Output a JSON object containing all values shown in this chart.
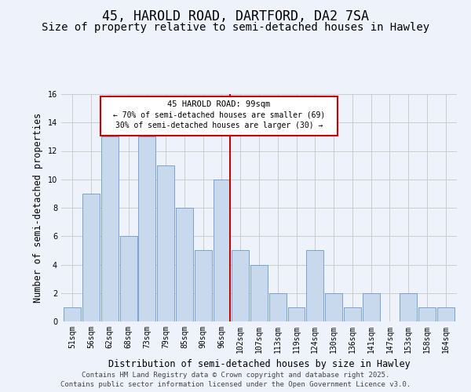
{
  "title": "45, HAROLD ROAD, DARTFORD, DA2 7SA",
  "subtitle": "Size of property relative to semi-detached houses in Hawley",
  "xlabel": "Distribution of semi-detached houses by size in Hawley",
  "ylabel": "Number of semi-detached properties",
  "categories": [
    "51sqm",
    "56sqm",
    "62sqm",
    "68sqm",
    "73sqm",
    "79sqm",
    "85sqm",
    "90sqm",
    "96sqm",
    "102sqm",
    "107sqm",
    "113sqm",
    "119sqm",
    "124sqm",
    "130sqm",
    "136sqm",
    "141sqm",
    "147sqm",
    "153sqm",
    "158sqm",
    "164sqm"
  ],
  "values": [
    1,
    9,
    13,
    6,
    13,
    11,
    8,
    5,
    10,
    5,
    4,
    2,
    1,
    5,
    2,
    1,
    2,
    0,
    2,
    1,
    1
  ],
  "bar_color": "#c8d9ed",
  "bar_edge_color": "#6699cc",
  "grid_color": "#cccccc",
  "background_color": "#eef2fb",
  "vline_color": "#cc0000",
  "annotation_title": "45 HAROLD ROAD: 99sqm",
  "annotation_line1": "← 70% of semi-detached houses are smaller (69)",
  "annotation_line2": "30% of semi-detached houses are larger (30) →",
  "annotation_box_color": "#cc0000",
  "ylim": [
    0,
    16
  ],
  "yticks": [
    0,
    2,
    4,
    6,
    8,
    10,
    12,
    14,
    16
  ],
  "footer_line1": "Contains HM Land Registry data © Crown copyright and database right 2025.",
  "footer_line2": "Contains public sector information licensed under the Open Government Licence v3.0.",
  "title_fontsize": 12,
  "subtitle_fontsize": 10,
  "axis_label_fontsize": 8.5,
  "tick_fontsize": 7,
  "footer_fontsize": 6.5
}
